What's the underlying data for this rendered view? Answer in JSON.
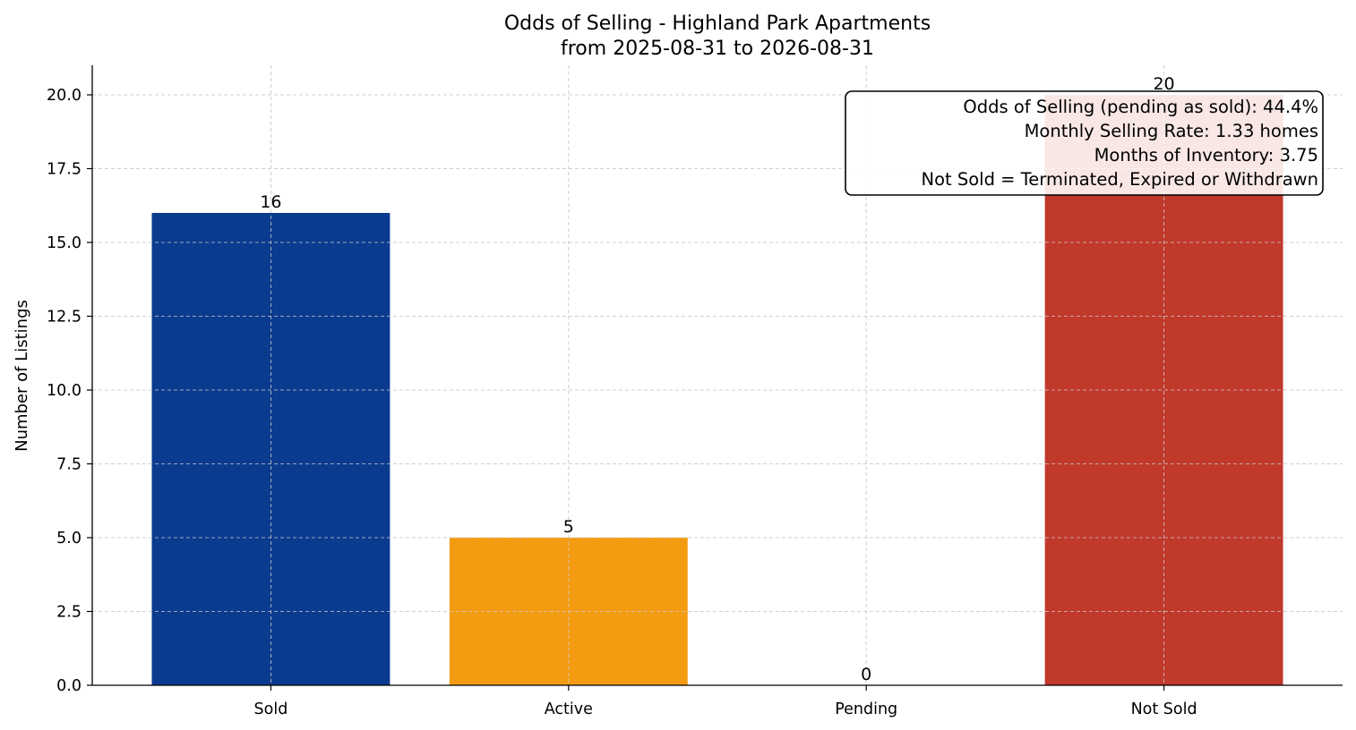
{
  "chart_data": {
    "type": "bar",
    "title": "Odds of Selling - Highland Park Apartments",
    "subtitle": "from 2025-08-31 to 2026-08-31",
    "xlabel": "",
    "ylabel": "Number of Listings",
    "ylim": [
      0,
      21
    ],
    "yticks": [
      "0.0",
      "2.5",
      "5.0",
      "7.5",
      "10.0",
      "12.5",
      "15.0",
      "17.5",
      "20.0"
    ],
    "yticks_values": [
      0,
      2.5,
      5,
      7.5,
      10,
      12.5,
      15,
      17.5,
      20
    ],
    "categories": [
      "Sold",
      "Active",
      "Pending",
      "Not Sold"
    ],
    "values": [
      16,
      5,
      0,
      20
    ],
    "value_labels": [
      "16",
      "5",
      "0",
      "20"
    ],
    "colors": [
      "#0b3b8f",
      "#f39c12",
      "#2e7d32",
      "#c0392b"
    ],
    "grid": true,
    "annotation": {
      "placement": "top-right",
      "lines": [
        "Odds of Selling (pending as sold): 44.4%",
        "Monthly Selling Rate: 1.33 homes",
        "Months of Inventory: 3.75",
        "Not Sold = Terminated, Expired or Withdrawn"
      ]
    }
  }
}
